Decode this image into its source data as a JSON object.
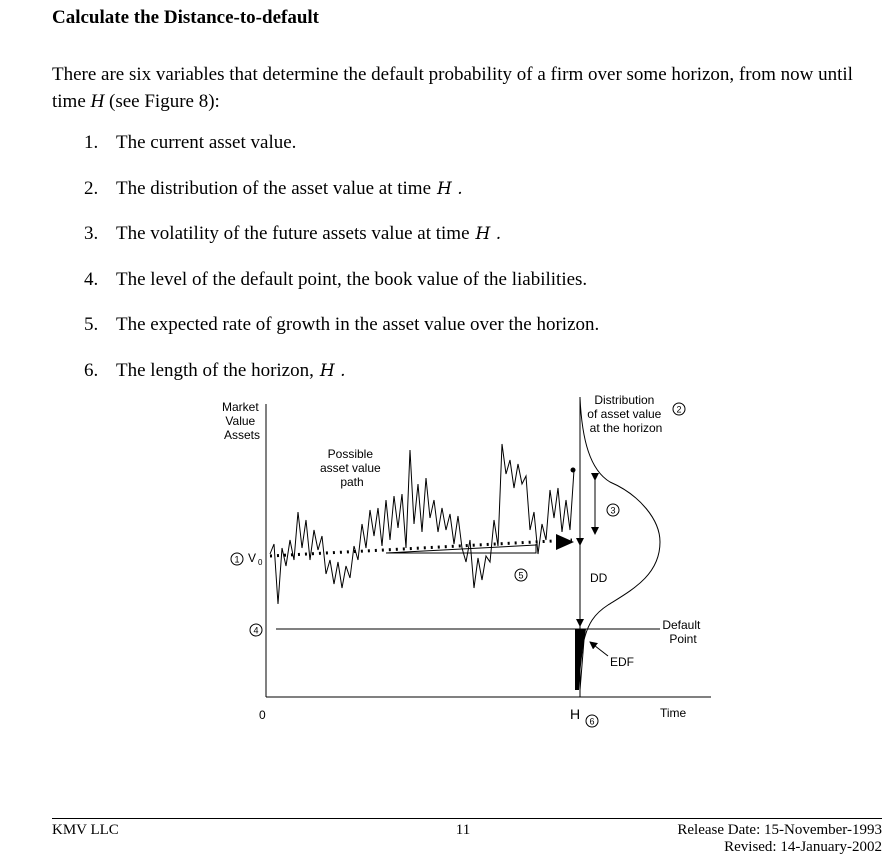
{
  "heading": "Calculate the Distance-to-default",
  "intro": {
    "before": "There are six variables that determine the default probability of a firm over some horizon, from now until time ",
    "var": "H",
    "after": " (see Figure 8):"
  },
  "items": [
    {
      "num": "1.",
      "text": "The current asset value.",
      "var": ""
    },
    {
      "num": "2.",
      "text": "The distribution of the asset value at time",
      "var": "H ."
    },
    {
      "num": "3.",
      "text": "The volatility of the future assets value at time",
      "var": "H ."
    },
    {
      "num": "4.",
      "text": "The level of the default point, the book value of the liabilities.",
      "var": ""
    },
    {
      "num": "5.",
      "text": "The expected rate of growth in the asset value over the horizon.",
      "var": ""
    },
    {
      "num": "6.",
      "text": "The length of the horizon,",
      "var": "H ."
    }
  ],
  "figure": {
    "y_label": [
      "Market",
      "Value",
      "Assets"
    ],
    "path_label": [
      "Possible",
      "asset value",
      "path"
    ],
    "dist_label": [
      "Distribution",
      "of asset value",
      "at the horizon"
    ],
    "v0": "V",
    "v0_sub": "0",
    "dd": "DD",
    "edf": "EDF",
    "default_label": [
      "Default",
      "Point"
    ],
    "origin": "0",
    "h_label": "H",
    "time_label": "Time",
    "markers": [
      "1",
      "2",
      "3",
      "4",
      "5",
      "6"
    ]
  },
  "footer": {
    "left": "KMV LLC",
    "page": "11",
    "release": "Release Date: 15-November-1993",
    "revised": "Revised: 14-January-2002"
  }
}
